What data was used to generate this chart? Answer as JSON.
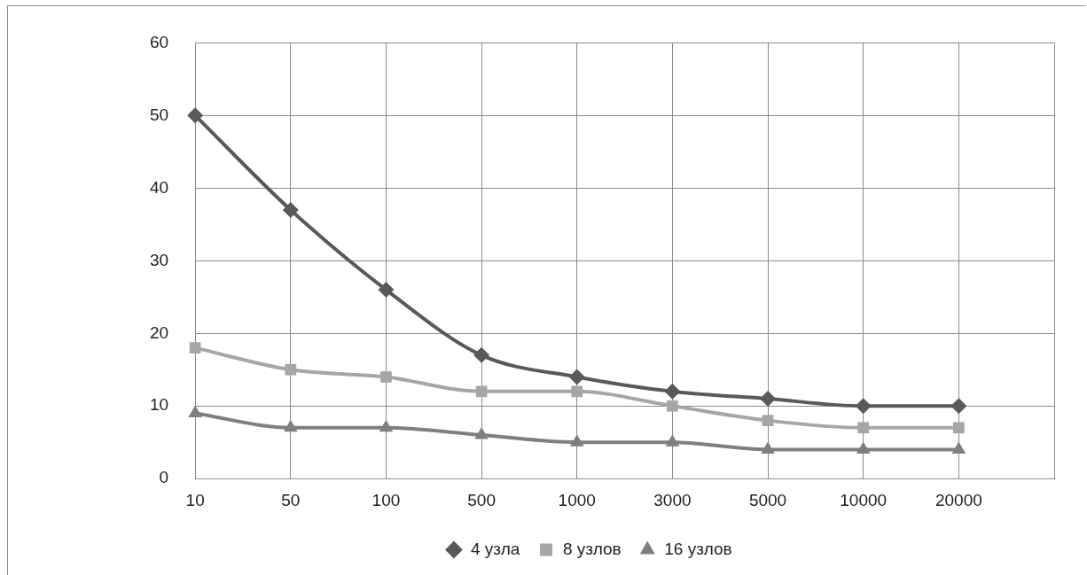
{
  "chart_data": {
    "type": "line",
    "categories": [
      "10",
      "50",
      "100",
      "500",
      "1000",
      "3000",
      "5000",
      "10000",
      "20000",
      null
    ],
    "series": [
      {
        "name": "4 узла",
        "color": "#595959",
        "marker": "diamond",
        "values": [
          50,
          37,
          26,
          17,
          14,
          12,
          11,
          10,
          10,
          null
        ]
      },
      {
        "name": "8 узлов",
        "color": "#a6a6a6",
        "marker": "square",
        "values": [
          18,
          15,
          14,
          12,
          12,
          10,
          8,
          7,
          7,
          null
        ]
      },
      {
        "name": "16 узлов",
        "color": "#7f7f7f",
        "marker": "triangle",
        "values": [
          9,
          7,
          7,
          6,
          5,
          5,
          4,
          4,
          4,
          null
        ]
      }
    ],
    "ylim": [
      0,
      60
    ],
    "yticks": [
      0,
      10,
      20,
      30,
      40,
      50,
      60
    ],
    "grid": true,
    "legend": "bottom"
  }
}
